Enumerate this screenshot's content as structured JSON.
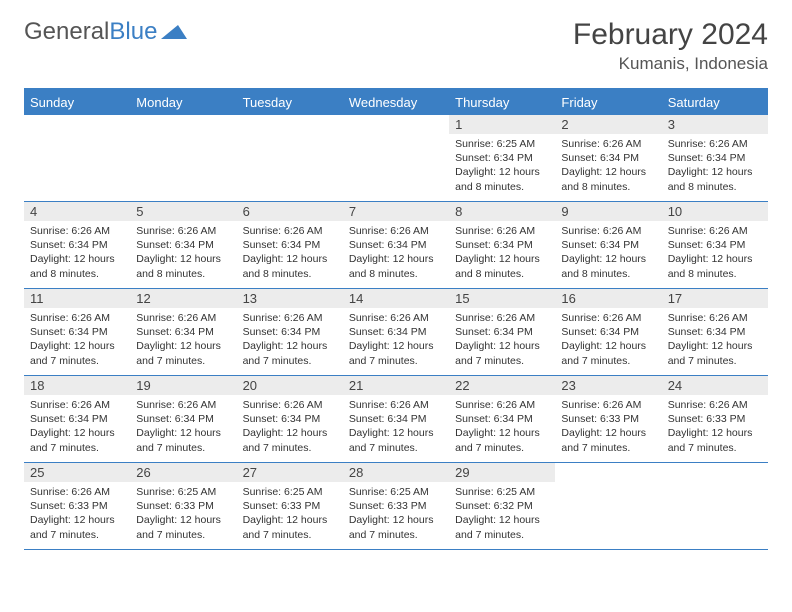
{
  "logo": {
    "word1": "General",
    "word2": "Blue",
    "shape_fill": "#3b7fc4"
  },
  "title": "February 2024",
  "location": "Kumanis, Indonesia",
  "colors": {
    "header_bar": "#3b7fc4",
    "daynum_bg": "#ececec",
    "border": "#3b7fc4",
    "text": "#333333"
  },
  "dow": [
    "Sunday",
    "Monday",
    "Tuesday",
    "Wednesday",
    "Thursday",
    "Friday",
    "Saturday"
  ],
  "weeks": [
    [
      null,
      null,
      null,
      null,
      {
        "n": "1",
        "sr": "6:25 AM",
        "ss": "6:34 PM",
        "dl": "12 hours and 8 minutes."
      },
      {
        "n": "2",
        "sr": "6:26 AM",
        "ss": "6:34 PM",
        "dl": "12 hours and 8 minutes."
      },
      {
        "n": "3",
        "sr": "6:26 AM",
        "ss": "6:34 PM",
        "dl": "12 hours and 8 minutes."
      }
    ],
    [
      {
        "n": "4",
        "sr": "6:26 AM",
        "ss": "6:34 PM",
        "dl": "12 hours and 8 minutes."
      },
      {
        "n": "5",
        "sr": "6:26 AM",
        "ss": "6:34 PM",
        "dl": "12 hours and 8 minutes."
      },
      {
        "n": "6",
        "sr": "6:26 AM",
        "ss": "6:34 PM",
        "dl": "12 hours and 8 minutes."
      },
      {
        "n": "7",
        "sr": "6:26 AM",
        "ss": "6:34 PM",
        "dl": "12 hours and 8 minutes."
      },
      {
        "n": "8",
        "sr": "6:26 AM",
        "ss": "6:34 PM",
        "dl": "12 hours and 8 minutes."
      },
      {
        "n": "9",
        "sr": "6:26 AM",
        "ss": "6:34 PM",
        "dl": "12 hours and 8 minutes."
      },
      {
        "n": "10",
        "sr": "6:26 AM",
        "ss": "6:34 PM",
        "dl": "12 hours and 8 minutes."
      }
    ],
    [
      {
        "n": "11",
        "sr": "6:26 AM",
        "ss": "6:34 PM",
        "dl": "12 hours and 7 minutes."
      },
      {
        "n": "12",
        "sr": "6:26 AM",
        "ss": "6:34 PM",
        "dl": "12 hours and 7 minutes."
      },
      {
        "n": "13",
        "sr": "6:26 AM",
        "ss": "6:34 PM",
        "dl": "12 hours and 7 minutes."
      },
      {
        "n": "14",
        "sr": "6:26 AM",
        "ss": "6:34 PM",
        "dl": "12 hours and 7 minutes."
      },
      {
        "n": "15",
        "sr": "6:26 AM",
        "ss": "6:34 PM",
        "dl": "12 hours and 7 minutes."
      },
      {
        "n": "16",
        "sr": "6:26 AM",
        "ss": "6:34 PM",
        "dl": "12 hours and 7 minutes."
      },
      {
        "n": "17",
        "sr": "6:26 AM",
        "ss": "6:34 PM",
        "dl": "12 hours and 7 minutes."
      }
    ],
    [
      {
        "n": "18",
        "sr": "6:26 AM",
        "ss": "6:34 PM",
        "dl": "12 hours and 7 minutes."
      },
      {
        "n": "19",
        "sr": "6:26 AM",
        "ss": "6:34 PM",
        "dl": "12 hours and 7 minutes."
      },
      {
        "n": "20",
        "sr": "6:26 AM",
        "ss": "6:34 PM",
        "dl": "12 hours and 7 minutes."
      },
      {
        "n": "21",
        "sr": "6:26 AM",
        "ss": "6:34 PM",
        "dl": "12 hours and 7 minutes."
      },
      {
        "n": "22",
        "sr": "6:26 AM",
        "ss": "6:34 PM",
        "dl": "12 hours and 7 minutes."
      },
      {
        "n": "23",
        "sr": "6:26 AM",
        "ss": "6:33 PM",
        "dl": "12 hours and 7 minutes."
      },
      {
        "n": "24",
        "sr": "6:26 AM",
        "ss": "6:33 PM",
        "dl": "12 hours and 7 minutes."
      }
    ],
    [
      {
        "n": "25",
        "sr": "6:26 AM",
        "ss": "6:33 PM",
        "dl": "12 hours and 7 minutes."
      },
      {
        "n": "26",
        "sr": "6:25 AM",
        "ss": "6:33 PM",
        "dl": "12 hours and 7 minutes."
      },
      {
        "n": "27",
        "sr": "6:25 AM",
        "ss": "6:33 PM",
        "dl": "12 hours and 7 minutes."
      },
      {
        "n": "28",
        "sr": "6:25 AM",
        "ss": "6:33 PM",
        "dl": "12 hours and 7 minutes."
      },
      {
        "n": "29",
        "sr": "6:25 AM",
        "ss": "6:32 PM",
        "dl": "12 hours and 7 minutes."
      },
      null,
      null
    ]
  ],
  "labels": {
    "sunrise": "Sunrise:",
    "sunset": "Sunset:",
    "daylight": "Daylight:"
  }
}
